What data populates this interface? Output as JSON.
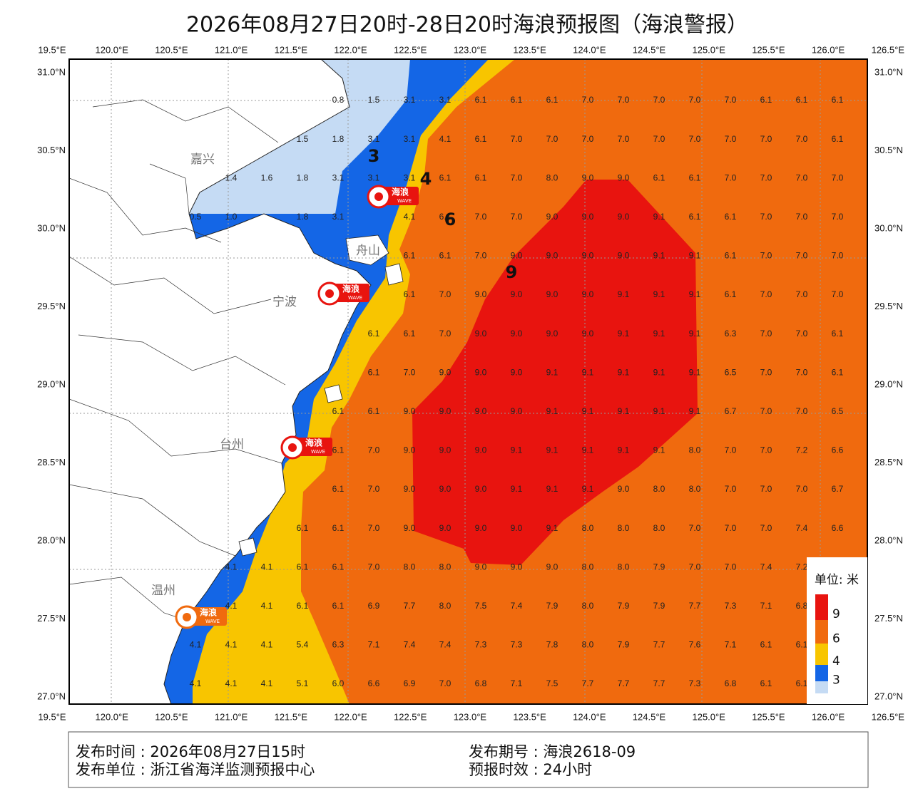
{
  "header": {
    "title": "2026年08月27日20时-28日20时海浪预报图（海浪警报）"
  },
  "axes": {
    "lon_labels": [
      "19.5°E",
      "120.0°E",
      "120.5°E",
      "121.0°E",
      "121.5°E",
      "122.0°E",
      "122.5°E",
      "123.0°E",
      "123.5°E",
      "124.0°E",
      "124.5°E",
      "125.0°E",
      "125.5°E",
      "126.0°E",
      "126.5°E"
    ],
    "lat_labels": [
      "31.0°N",
      "30.5°N",
      "30.0°N",
      "29.5°N",
      "29.0°N",
      "28.5°N",
      "28.0°N",
      "27.5°N",
      "27.0°N"
    ]
  },
  "places": [
    "嘉兴",
    "舟山",
    "宁波",
    "台州",
    "温州"
  ],
  "contour_labels": [
    "3",
    "4",
    "6",
    "9"
  ],
  "badge": {
    "text": "海浪",
    "sub": "WAVE"
  },
  "grid": {
    "rows": [
      [
        null,
        null,
        null,
        null,
        "0.8",
        "1.5",
        "3.1",
        "3.1",
        "6.1",
        "6.1",
        "6.1",
        "7.0",
        "7.0",
        "7.0",
        "7.0",
        "7.0",
        "6.1",
        "6.1",
        "6.1"
      ],
      [
        null,
        null,
        null,
        "1.5",
        "1.8",
        "3.1",
        "3.1",
        "4.1",
        "6.1",
        "7.0",
        "7.0",
        "7.0",
        "7.0",
        "7.0",
        "7.0",
        "7.0",
        "7.0",
        "7.0",
        "6.1"
      ],
      [
        null,
        "1.4",
        "1.6",
        "1.8",
        "3.1",
        "3.1",
        "3.1",
        "6.1",
        "6.1",
        "7.0",
        "8.0",
        "9.0",
        "9.0",
        "6.1",
        "6.1",
        "7.0",
        "7.0",
        "7.0",
        "7.0"
      ],
      [
        "0.5",
        "1.0",
        null,
        "1.8",
        "3.1",
        null,
        "4.1",
        "6.1",
        "7.0",
        "7.0",
        "9.0",
        "9.0",
        "9.0",
        "9.1",
        "6.1",
        "6.1",
        "7.0",
        "7.0",
        "7.0"
      ],
      [
        null,
        null,
        null,
        null,
        null,
        null,
        "6.1",
        "6.1",
        "7.0",
        "9.0",
        "9.0",
        "9.0",
        "9.0",
        "9.1",
        "9.1",
        "6.1",
        "7.0",
        "7.0",
        "7.0"
      ],
      [
        null,
        null,
        null,
        null,
        null,
        null,
        "6.1",
        "7.0",
        "9.0",
        "9.0",
        "9.0",
        "9.0",
        "9.1",
        "9.1",
        "9.1",
        "6.1",
        "7.0",
        "7.0",
        "7.0"
      ],
      [
        null,
        null,
        null,
        null,
        null,
        "6.1",
        "6.1",
        "7.0",
        "9.0",
        "9.0",
        "9.0",
        "9.0",
        "9.1",
        "9.1",
        "9.1",
        "6.3",
        "7.0",
        "7.0",
        "6.1"
      ],
      [
        null,
        null,
        null,
        null,
        null,
        "6.1",
        "7.0",
        "9.0",
        "9.0",
        "9.0",
        "9.1",
        "9.1",
        "9.1",
        "9.1",
        "9.1",
        "6.5",
        "7.0",
        "7.0",
        "6.1"
      ],
      [
        null,
        null,
        null,
        null,
        "6.1",
        "6.1",
        "9.0",
        "9.0",
        "9.0",
        "9.0",
        "9.1",
        "9.1",
        "9.1",
        "9.1",
        "9.1",
        "6.7",
        "7.0",
        "7.0",
        "6.5"
      ],
      [
        null,
        null,
        null,
        null,
        "6.1",
        "7.0",
        "9.0",
        "9.0",
        "9.0",
        "9.1",
        "9.1",
        "9.1",
        "9.1",
        "9.1",
        "8.0",
        "7.0",
        "7.0",
        "7.2",
        "6.6"
      ],
      [
        null,
        null,
        null,
        null,
        "6.1",
        "7.0",
        "9.0",
        "9.0",
        "9.0",
        "9.1",
        "9.1",
        "9.1",
        "9.0",
        "8.0",
        "8.0",
        "7.0",
        "7.0",
        "7.0",
        "6.7"
      ],
      [
        null,
        null,
        null,
        "6.1",
        "6.1",
        "7.0",
        "9.0",
        "9.0",
        "9.0",
        "9.0",
        "9.1",
        "8.0",
        "8.0",
        "8.0",
        "7.0",
        "7.0",
        "7.0",
        "7.4",
        "6.6"
      ],
      [
        null,
        "4.1",
        "4.1",
        "6.1",
        "6.1",
        "7.0",
        "8.0",
        "8.0",
        "9.0",
        "9.0",
        "9.0",
        "8.0",
        "8.0",
        "7.9",
        "7.0",
        "7.0",
        "7.4",
        "7.2",
        null
      ],
      [
        null,
        "4.1",
        "4.1",
        "6.1",
        "6.1",
        "6.9",
        "7.7",
        "8.0",
        "7.5",
        "7.4",
        "7.9",
        "8.0",
        "7.9",
        "7.9",
        "7.7",
        "7.3",
        "7.1",
        "6.8",
        null
      ],
      [
        "4.1",
        "4.1",
        "4.1",
        "5.4",
        "6.3",
        "7.1",
        "7.4",
        "7.4",
        "7.3",
        "7.3",
        "7.8",
        "8.0",
        "7.9",
        "7.7",
        "7.6",
        "7.1",
        "6.1",
        "6.1",
        null
      ],
      [
        "4.1",
        "4.1",
        "4.1",
        "5.1",
        "6.0",
        "6.6",
        "6.9",
        "7.0",
        "6.8",
        "7.1",
        "7.5",
        "7.7",
        "7.7",
        "7.7",
        "7.3",
        "6.8",
        "6.1",
        "6.1",
        null
      ]
    ]
  },
  "legend": {
    "title": "单位: 米",
    "items": [
      {
        "value": 9,
        "color": "#e8140f"
      },
      {
        "value": 6,
        "color": "#f06a0e"
      },
      {
        "value": 4,
        "color": "#f8c500"
      },
      {
        "value": 3,
        "color": "#1466e6"
      }
    ],
    "base_color": "#c5dbf4"
  },
  "footer": {
    "left": [
      "发布时间 : 2026年08月27日15时",
      "发布单位 : 浙江省海洋监测预报中心"
    ],
    "right": [
      "发布期号 : 海浪2618-09",
      "预报时效 : 24小时"
    ]
  }
}
